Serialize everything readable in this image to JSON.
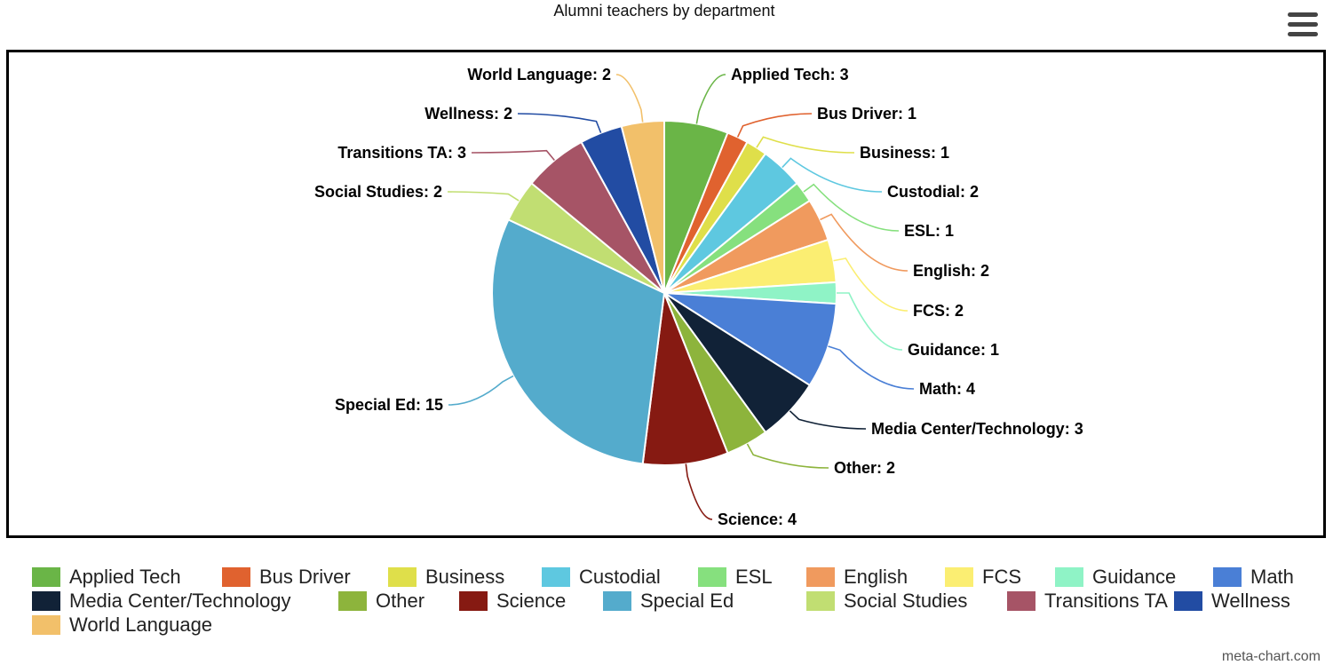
{
  "title": "Alumni teachers by department",
  "menu": {
    "icon": "hamburger-menu-icon"
  },
  "credit": "meta-chart.com",
  "chart_data": {
    "type": "pie",
    "title": "Alumni teachers by department",
    "legend_placement": "bottom",
    "slices": [
      {
        "label": "Applied Tech",
        "value": 3,
        "color": "#6ab547",
        "data_label": "Applied Tech: 3"
      },
      {
        "label": "Bus Driver",
        "value": 1,
        "color": "#e0622f",
        "data_label": "Bus Driver: 1"
      },
      {
        "label": "Business",
        "value": 1,
        "color": "#dfdf4a",
        "data_label": "Business: 1"
      },
      {
        "label": "Custodial",
        "value": 2,
        "color": "#5ec8e0",
        "data_label": "Custodial: 2"
      },
      {
        "label": "ESL",
        "value": 1,
        "color": "#86e07e",
        "data_label": "ESL: 1"
      },
      {
        "label": "English",
        "value": 2,
        "color": "#f09a5e",
        "data_label": "English: 2"
      },
      {
        "label": "FCS",
        "value": 2,
        "color": "#fbee72",
        "data_label": "FCS: 2"
      },
      {
        "label": "Guidance",
        "value": 1,
        "color": "#8ff3c6",
        "data_label": "Guidance: 1"
      },
      {
        "label": "Math",
        "value": 4,
        "color": "#4a7fd6",
        "data_label": "Math: 4"
      },
      {
        "label": "Media Center/Technology",
        "value": 3,
        "color": "#112237",
        "data_label": "Media Center/Technology: 3"
      },
      {
        "label": "Other",
        "value": 2,
        "color": "#8db43c",
        "data_label": "Other: 2"
      },
      {
        "label": "Science",
        "value": 4,
        "color": "#861a12",
        "data_label": "Science: 4"
      },
      {
        "label": "Special Ed",
        "value": 15,
        "color": "#54abcc",
        "data_label": "Special Ed: 15"
      },
      {
        "label": "Social Studies",
        "value": 2,
        "color": "#c1de72",
        "data_label": "Social Studies: 2"
      },
      {
        "label": "Transitions TA",
        "value": 3,
        "color": "#a65466",
        "data_label": "Transitions TA: 3"
      },
      {
        "label": "Wellness",
        "value": 2,
        "color": "#224ca3",
        "data_label": "Wellness: 2"
      },
      {
        "label": "World Language",
        "value": 2,
        "color": "#f2c06a",
        "data_label": "World Language: 2"
      }
    ]
  }
}
